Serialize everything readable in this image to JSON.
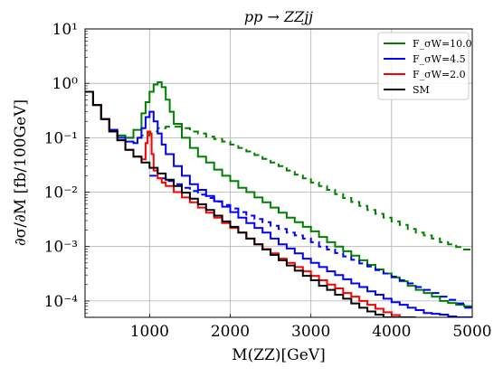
{
  "chart_data": {
    "type": "line",
    "title": "pp → ZZjj",
    "xlabel": "M(ZZ)[GeV]",
    "ylabel": "∂σ/∂M [fb/100GeV]",
    "xlim": [
      200,
      5000
    ],
    "ylim": [
      5e-05,
      10
    ],
    "yscale": "log",
    "grid": true,
    "legend_position": "top-right",
    "x_ticks": [
      "1000",
      "2000",
      "3000",
      "4000",
      "5000"
    ],
    "y_ticks": [
      "10⁻⁴",
      "10⁻³",
      "10⁻²",
      "10⁻¹",
      "10⁰",
      "10¹"
    ],
    "series": [
      {
        "name": "F_σW=10.0",
        "color": "#008000",
        "style": "solid",
        "x": [
          200,
          300,
          400,
          500,
          600,
          700,
          800,
          900,
          950,
          1000,
          1050,
          1100,
          1150,
          1200,
          1250,
          1300,
          1400,
          1500,
          1600,
          1700,
          1800,
          1900,
          2000,
          2100,
          2200,
          2300,
          2400,
          2500,
          2600,
          2700,
          2800,
          2900,
          3000,
          3100,
          3200,
          3300,
          3400,
          3500,
          3600,
          3700,
          3800,
          3900,
          4000,
          4100,
          4200,
          4300,
          4400,
          4500,
          4600,
          4700,
          4800,
          4900,
          5000
        ],
        "y": [
          0.7,
          0.4,
          0.22,
          0.14,
          0.11,
          0.1,
          0.14,
          0.28,
          0.45,
          0.7,
          0.95,
          1.05,
          0.85,
          0.5,
          0.3,
          0.18,
          0.1,
          0.065,
          0.045,
          0.035,
          0.026,
          0.02,
          0.016,
          0.012,
          0.01,
          0.008,
          0.0065,
          0.0052,
          0.0042,
          0.0034,
          0.0028,
          0.0023,
          0.0019,
          0.0015,
          0.0012,
          0.001,
          0.00082,
          0.00068,
          0.00056,
          0.00046,
          0.00038,
          0.00032,
          0.00027,
          0.00023,
          0.00019,
          0.00016,
          0.00014,
          0.00012,
          0.0001,
          9.2e-05,
          8.5e-05,
          8e-05,
          7.8e-05
        ]
      },
      {
        "name": "F_σW=10.0 (dashed)",
        "color": "#008000",
        "style": "dashed",
        "x": [
          600,
          700,
          800,
          900,
          1000,
          1100,
          1200,
          1300,
          1400,
          1500,
          1600,
          1700,
          1800,
          1900,
          2000,
          2100,
          2200,
          2300,
          2400,
          2500,
          2600,
          2700,
          2800,
          2900,
          3000,
          3100,
          3200,
          3300,
          3400,
          3500,
          3600,
          3700,
          3800,
          3900,
          4000,
          4100,
          4200,
          4300,
          4400,
          4500,
          4600,
          4700,
          4800,
          4900,
          5000
        ],
        "y": [
          0.11,
          0.1,
          0.1,
          0.11,
          0.13,
          0.15,
          0.16,
          0.16,
          0.15,
          0.13,
          0.12,
          0.105,
          0.095,
          0.085,
          0.075,
          0.065,
          0.056,
          0.048,
          0.041,
          0.035,
          0.03,
          0.025,
          0.021,
          0.018,
          0.015,
          0.013,
          0.011,
          0.0092,
          0.0078,
          0.0066,
          0.0056,
          0.0047,
          0.004,
          0.0034,
          0.0029,
          0.0025,
          0.0021,
          0.0018,
          0.0016,
          0.0014,
          0.0012,
          0.0011,
          0.00098,
          0.00088,
          0.00085
        ]
      },
      {
        "name": "F_σW=4.5",
        "color": "#0000ff",
        "style": "solid",
        "x": [
          200,
          300,
          400,
          500,
          600,
          700,
          800,
          850,
          900,
          950,
          1000,
          1050,
          1100,
          1150,
          1200,
          1300,
          1400,
          1500,
          1600,
          1700,
          1800,
          1900,
          2000,
          2100,
          2200,
          2300,
          2400,
          2500,
          2600,
          2700,
          2800,
          2900,
          3000,
          3100,
          3200,
          3300,
          3400,
          3500,
          3600,
          3700,
          3800,
          3900,
          4000,
          4100,
          4200,
          4300,
          4400,
          4500,
          4600,
          4700,
          4800,
          4900
        ],
        "y": [
          0.7,
          0.4,
          0.22,
          0.14,
          0.1,
          0.085,
          0.08,
          0.1,
          0.15,
          0.24,
          0.3,
          0.2,
          0.12,
          0.075,
          0.05,
          0.03,
          0.02,
          0.014,
          0.011,
          0.0085,
          0.0068,
          0.0054,
          0.0043,
          0.0034,
          0.0027,
          0.0022,
          0.0018,
          0.0014,
          0.0011,
          0.00092,
          0.00075,
          0.0006,
          0.0005,
          0.00042,
          0.00035,
          0.0003,
          0.00025,
          0.00021,
          0.00018,
          0.00015,
          0.00013,
          0.00011,
          9.5e-05,
          8.5e-05,
          7.5e-05,
          6.8e-05,
          6e-05,
          5.8e-05,
          5.6e-05,
          5.2e-05,
          5e-05,
          5e-05
        ]
      },
      {
        "name": "F_σW=4.5 (dashed)",
        "color": "#0000ff",
        "style": "dashed",
        "x": [
          1000,
          1100,
          1200,
          1300,
          1400,
          1500,
          1600,
          1700,
          1800,
          1900,
          2000,
          2100,
          2200,
          2300,
          2400,
          2500,
          2600,
          2700,
          2800,
          2900,
          3000,
          3100,
          3200,
          3300,
          3400,
          3500,
          3600,
          3700,
          3800,
          3900,
          4000,
          4100,
          4200,
          4300,
          4400,
          4500,
          4600,
          4700,
          4800,
          4900,
          5000
        ],
        "y": [
          0.02,
          0.018,
          0.016,
          0.014,
          0.012,
          0.0105,
          0.009,
          0.0078,
          0.0067,
          0.0058,
          0.005,
          0.0043,
          0.0037,
          0.0032,
          0.0028,
          0.0024,
          0.0021,
          0.0018,
          0.0016,
          0.0014,
          0.0012,
          0.001,
          0.00088,
          0.00076,
          0.00066,
          0.00057,
          0.00049,
          0.00043,
          0.00037,
          0.00032,
          0.00028,
          0.00024,
          0.00021,
          0.00018,
          0.00016,
          0.00014,
          0.00012,
          0.000105,
          9e-05,
          7.5e-05,
          6.5e-05
        ]
      },
      {
        "name": "F_σW=2.0",
        "color": "#ff0000",
        "style": "solid",
        "x": [
          200,
          300,
          400,
          500,
          600,
          700,
          800,
          900,
          950,
          975,
          1000,
          1025,
          1050,
          1100,
          1150,
          1200,
          1300,
          1400,
          1500,
          1600,
          1700,
          1800,
          1900,
          2000,
          2100,
          2200,
          2300,
          2400,
          2500,
          2600,
          2700,
          2800,
          2900,
          3000,
          3100,
          3200,
          3300,
          3400,
          3500,
          3600,
          3700,
          3800,
          3900,
          4000,
          4100,
          4200
        ],
        "y": [
          0.7,
          0.4,
          0.22,
          0.13,
          0.09,
          0.06,
          0.045,
          0.04,
          0.08,
          0.13,
          0.12,
          0.05,
          0.025,
          0.018,
          0.015,
          0.013,
          0.01,
          0.008,
          0.0065,
          0.0052,
          0.0042,
          0.0034,
          0.0027,
          0.0022,
          0.0018,
          0.0014,
          0.0011,
          0.0009,
          0.00075,
          0.0006,
          0.0005,
          0.00042,
          0.00035,
          0.00029,
          0.00024,
          0.0002,
          0.00017,
          0.00014,
          0.00012,
          0.0001,
          8.5e-05,
          7.2e-05,
          6.2e-05,
          5.5e-05,
          5e-05,
          5e-05
        ]
      },
      {
        "name": "SM",
        "color": "#000000",
        "style": "solid",
        "x": [
          200,
          300,
          400,
          500,
          600,
          700,
          800,
          900,
          1000,
          1100,
          1200,
          1300,
          1400,
          1500,
          1600,
          1700,
          1800,
          1900,
          2000,
          2100,
          2200,
          2300,
          2400,
          2500,
          2600,
          2700,
          2800,
          2900,
          3000,
          3100,
          3200,
          3300,
          3400,
          3500,
          3600,
          3700,
          3800,
          3900,
          4000,
          4100,
          4200
        ],
        "y": [
          0.7,
          0.4,
          0.22,
          0.13,
          0.09,
          0.06,
          0.045,
          0.035,
          0.028,
          0.022,
          0.017,
          0.013,
          0.0098,
          0.0076,
          0.006,
          0.0047,
          0.0037,
          0.0029,
          0.0023,
          0.0018,
          0.0014,
          0.0011,
          0.00088,
          0.0007,
          0.00056,
          0.00045,
          0.00036,
          0.00029,
          0.00024,
          0.00019,
          0.00016,
          0.00013,
          0.00011,
          9e-05,
          7.5e-05,
          6.4e-05,
          5.6e-05,
          5e-05,
          4.6e-05,
          5e-05,
          5e-05
        ]
      }
    ],
    "legend": [
      {
        "label": "F_σW=10.0",
        "color": "#008000"
      },
      {
        "label": "F_σW=4.5",
        "color": "#0000ff"
      },
      {
        "label": "F_σW=2.0",
        "color": "#ff0000"
      },
      {
        "label": "SM",
        "color": "#000000"
      }
    ]
  }
}
